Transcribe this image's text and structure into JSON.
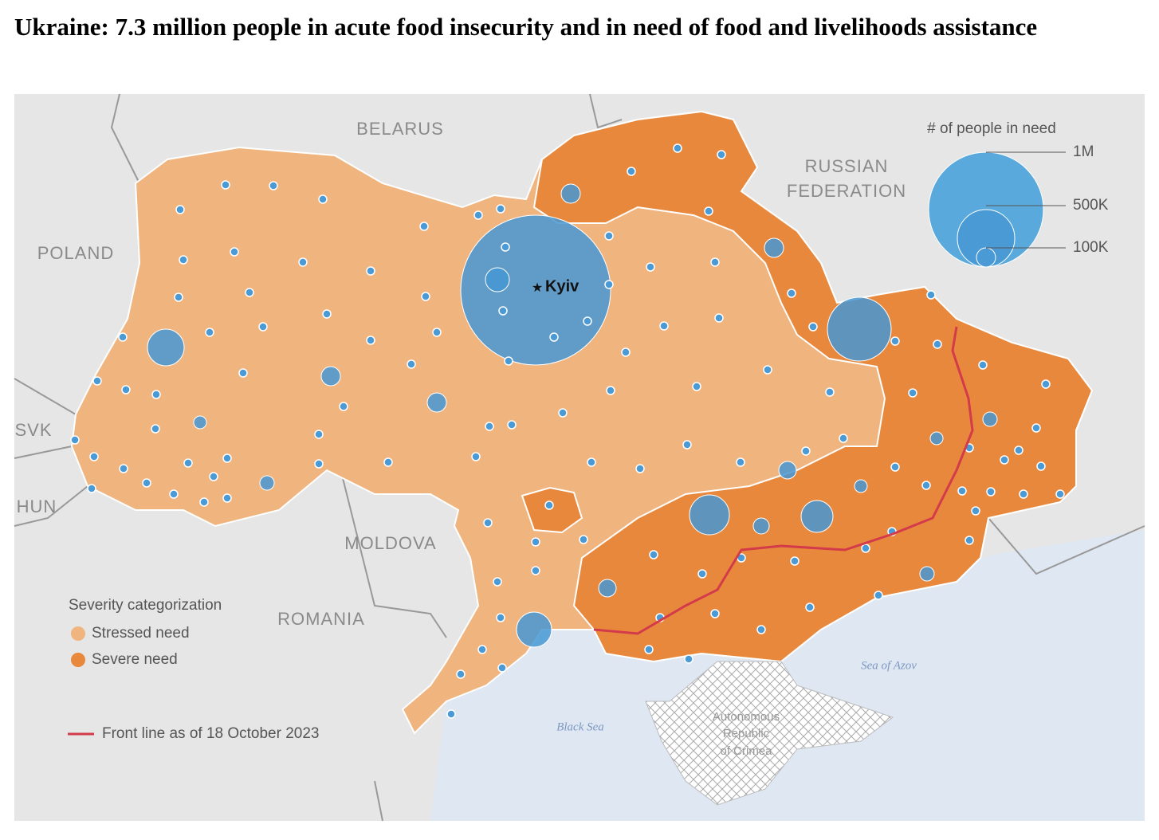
{
  "title": "Ukraine: 7.3 million people in acute food insecurity and in need of food and livelihoods assistance",
  "labels": {
    "belarus": "BELARUS",
    "russia": [
      "RUSSIAN",
      "FEDERATION"
    ],
    "poland": "POLAND",
    "svk": "SVK",
    "hun": "HUN",
    "moldova": "MOLDOVA",
    "romania": "ROMANIA",
    "kyiv": "Kyiv",
    "black_sea": "Black Sea",
    "sea_of_azov": "Sea of Azov",
    "crimea": [
      "Autonomous",
      "Republic",
      "of Crimea"
    ]
  },
  "legend": {
    "severity_title": "Severity categorization",
    "stressed": "Stressed need",
    "severe": "Severe need",
    "front_line": "Front line as of 18 October 2023",
    "size_title": "# of people in need",
    "sizes": [
      "1M",
      "500K",
      "100K"
    ]
  }
}
